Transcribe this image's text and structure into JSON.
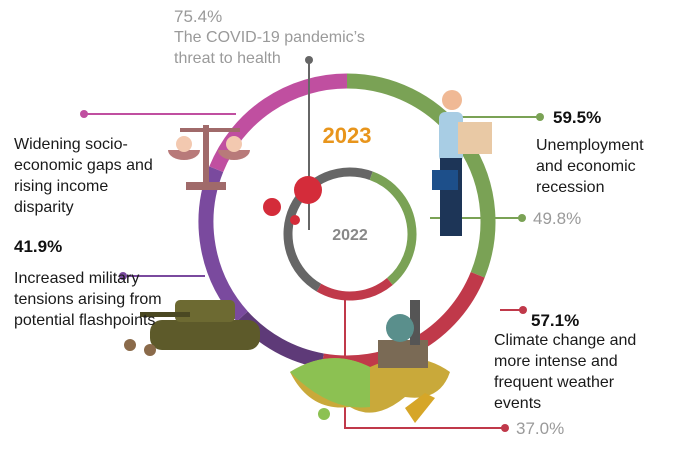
{
  "center": {
    "outer_year": "2023",
    "inner_year": "2022"
  },
  "items": [
    {
      "value": "75.4%",
      "label": "The COVID-19 pandemic’s threat to health"
    },
    {
      "value": "59.5%",
      "label": "Unemployment and economic recession",
      "previous": "49.8%"
    },
    {
      "value": "57.1%",
      "label": "Climate change and more intense and frequent weather events",
      "previous": "37.0%"
    },
    {
      "label": "Widening socio-economic gaps and rising income disparity"
    },
    {
      "value": "41.9%",
      "label": "Increased military tensions arising from potential flashpoints"
    }
  ]
}
